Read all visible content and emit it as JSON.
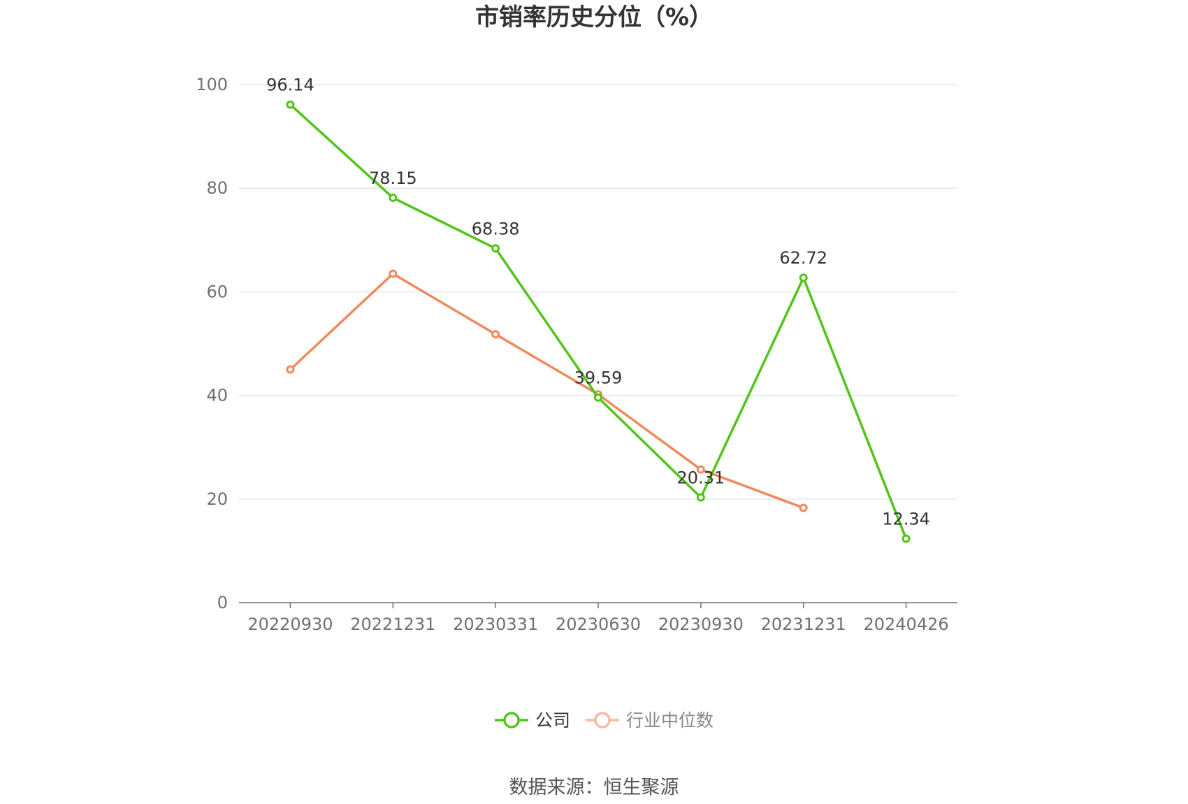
{
  "chart_data": {
    "type": "line",
    "title": "市销率历史分位（%）",
    "categories": [
      "20220930",
      "20221231",
      "20230331",
      "20230630",
      "20230930",
      "20231231",
      "20240426"
    ],
    "ylim": [
      0,
      100
    ],
    "yticks": [
      0,
      20,
      40,
      60,
      80,
      100
    ],
    "grid": true,
    "legend_position": "bottom",
    "series": [
      {
        "name": "公司",
        "color": "#52c41a",
        "values": [
          96.14,
          78.15,
          68.38,
          39.59,
          20.31,
          62.72,
          12.34
        ],
        "labels": [
          "96.14",
          "78.15",
          "68.38",
          "39.59",
          "20.31",
          "62.72",
          "12.34"
        ]
      },
      {
        "name": "行业中位数",
        "color": "#f08a5d",
        "legend_color": "#f7b9a0",
        "values": [
          45.0,
          63.5,
          51.8,
          40.2,
          25.7,
          18.3,
          null
        ]
      }
    ],
    "source": "数据来源：恒生聚源"
  }
}
